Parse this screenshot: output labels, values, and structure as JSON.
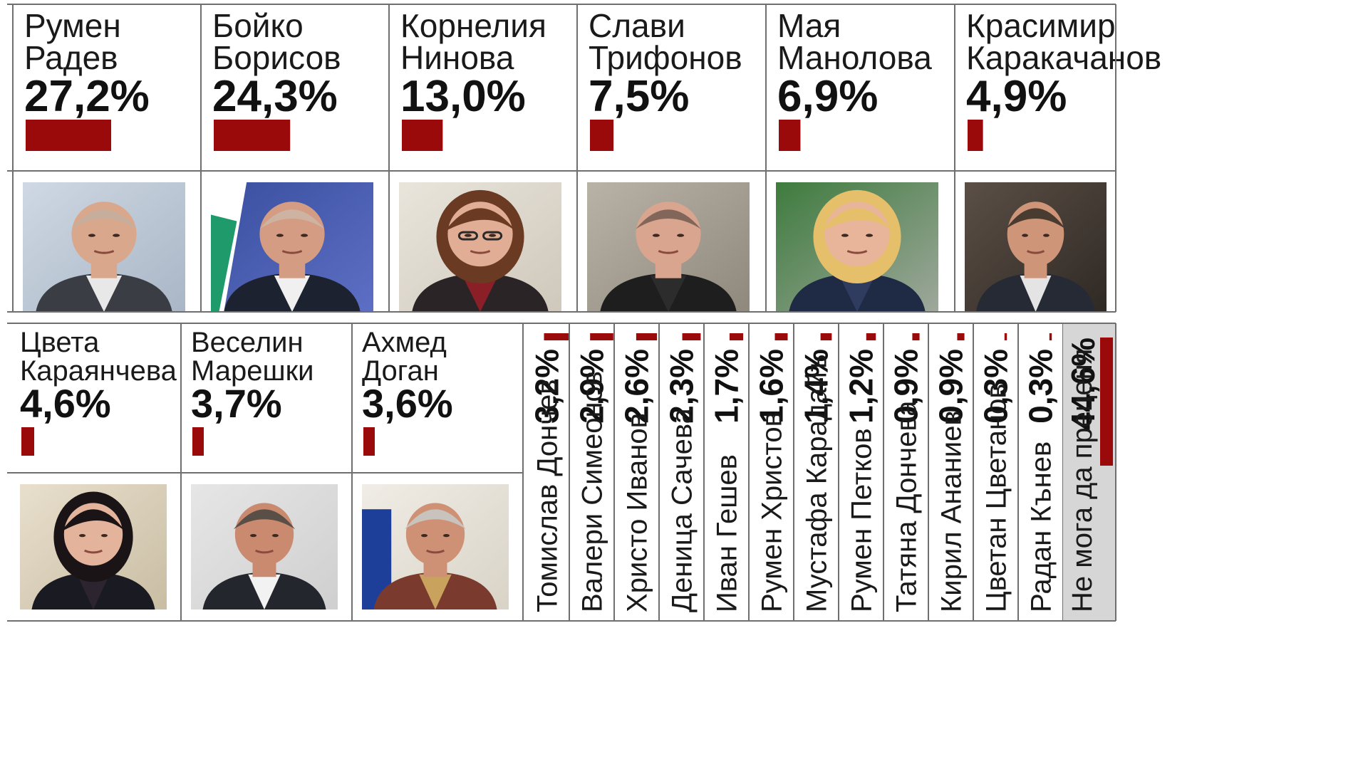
{
  "chart_data": {
    "type": "bar",
    "unit": "%",
    "featured": [
      {
        "first": "Румен",
        "last": "Радев",
        "value": 27.2,
        "label": "27,2%",
        "portrait": "man-bald-grey-suit-portrait"
      },
      {
        "first": "Бойко",
        "last": "Борисов",
        "value": 24.3,
        "label": "24,3%",
        "portrait": "man-dark-suit-flag-background-portrait"
      },
      {
        "first": "Корнелия",
        "last": "Нинова",
        "value": 13.0,
        "label": "13,0%",
        "portrait": "woman-glasses-portrait"
      },
      {
        "first": "Слави",
        "last": "Трифонов",
        "value": 7.5,
        "label": "7,5%",
        "portrait": "man-shaved-head-portrait"
      },
      {
        "first": "Мая",
        "last": "Манолова",
        "value": 6.9,
        "label": "6,9%",
        "portrait": "woman-blonde-portrait"
      },
      {
        "first": "Красимир",
        "last": "Каракачанов",
        "value": 4.9,
        "label": "4,9%",
        "portrait": "man-dark-hair-portrait"
      },
      {
        "first": "Цвета",
        "last": "Караянчева",
        "value": 4.6,
        "label": "4,6%",
        "portrait": "woman-dark-hair-portrait"
      },
      {
        "first": "Веселин",
        "last": "Марешки",
        "value": 3.7,
        "label": "3,7%",
        "portrait": "man-short-hair-smiling-portrait"
      },
      {
        "first": "Ахмед",
        "last": "Доган",
        "value": 3.6,
        "label": "3,6%",
        "portrait": "man-grey-hair-smiling-portrait"
      }
    ],
    "others": [
      {
        "name": "Томислав Дончев",
        "value": 3.2,
        "label": "3,2%"
      },
      {
        "name": "Валери Симеонов",
        "value": 2.9,
        "label": "2,9%"
      },
      {
        "name": "Христо Иванов",
        "value": 2.6,
        "label": "2,6%"
      },
      {
        "name": "Деница Сачева",
        "value": 2.3,
        "label": "2,3%"
      },
      {
        "name": "Иван Гешев",
        "value": 1.7,
        "label": "1,7%"
      },
      {
        "name": "Румен Христов",
        "value": 1.6,
        "label": "1,6%"
      },
      {
        "name": "Мустафа Карадайъ",
        "value": 1.4,
        "label": "1,4%"
      },
      {
        "name": "Румен Петков",
        "value": 1.2,
        "label": "1,2%"
      },
      {
        "name": "Татяна Дончева",
        "value": 0.9,
        "label": "0,9%"
      },
      {
        "name": "Кирил Ананиев",
        "value": 0.9,
        "label": "0,9%"
      },
      {
        "name": "Цветан Цветанов",
        "value": 0.3,
        "label": "0,3%"
      },
      {
        "name": "Радан Кънев",
        "value": 0.3,
        "label": "0,3%"
      }
    ],
    "undecided": {
      "name": "Не мога да преценя",
      "value": 44.6,
      "label": "44,6%"
    }
  },
  "colors": {
    "bar": "#9b0a0a",
    "grid": "#6f6f6f",
    "undecided_bg": "#d6d6d6"
  }
}
